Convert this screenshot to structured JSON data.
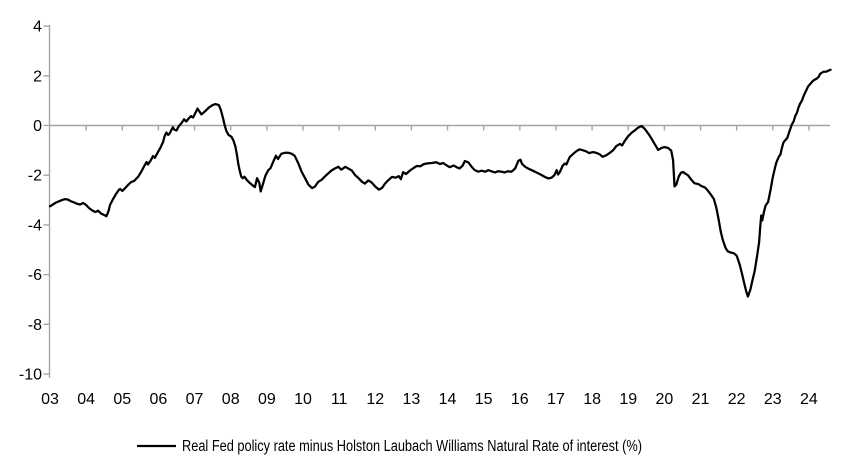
{
  "chart_data": {
    "type": "line",
    "title": "",
    "xlabel": "",
    "ylabel": "",
    "x_axis": {
      "tick_labels": [
        "03",
        "04",
        "05",
        "06",
        "07",
        "08",
        "09",
        "10",
        "11",
        "12",
        "13",
        "14",
        "15",
        "16",
        "17",
        "18",
        "19",
        "20",
        "21",
        "22",
        "23",
        "24"
      ],
      "tick_years": [
        2003,
        2004,
        2005,
        2006,
        2007,
        2008,
        2009,
        2010,
        2011,
        2012,
        2013,
        2014,
        2015,
        2016,
        2017,
        2018,
        2019,
        2020,
        2021,
        2022,
        2023,
        2024
      ],
      "range": [
        2003,
        2024.75
      ]
    },
    "y_axis": {
      "ticks": [
        4,
        2,
        0,
        -2,
        -4,
        -6,
        -8,
        -10
      ],
      "range": [
        -10,
        4
      ]
    },
    "grid": {
      "zero_line": true,
      "legend_position": "bottom-center"
    },
    "series": [
      {
        "name": "Real Fed policy rate minus Holston Laubach Williams Natural Rate of interest (%)",
        "color": "#000000",
        "points": [
          [
            2003.0,
            -3.25
          ],
          [
            2003.08,
            -3.18
          ],
          [
            2003.17,
            -3.1
          ],
          [
            2003.25,
            -3.05
          ],
          [
            2003.33,
            -3.0
          ],
          [
            2003.42,
            -2.96
          ],
          [
            2003.5,
            -2.98
          ],
          [
            2003.58,
            -3.05
          ],
          [
            2003.67,
            -3.1
          ],
          [
            2003.75,
            -3.15
          ],
          [
            2003.83,
            -3.18
          ],
          [
            2003.92,
            -3.12
          ],
          [
            2004.0,
            -3.2
          ],
          [
            2004.08,
            -3.32
          ],
          [
            2004.17,
            -3.42
          ],
          [
            2004.25,
            -3.48
          ],
          [
            2004.33,
            -3.43
          ],
          [
            2004.42,
            -3.55
          ],
          [
            2004.5,
            -3.6
          ],
          [
            2004.56,
            -3.65
          ],
          [
            2004.62,
            -3.45
          ],
          [
            2004.66,
            -3.2
          ],
          [
            2004.75,
            -2.95
          ],
          [
            2004.83,
            -2.75
          ],
          [
            2004.9,
            -2.6
          ],
          [
            2004.94,
            -2.55
          ],
          [
            2005.0,
            -2.63
          ],
          [
            2005.06,
            -2.55
          ],
          [
            2005.17,
            -2.38
          ],
          [
            2005.25,
            -2.27
          ],
          [
            2005.33,
            -2.23
          ],
          [
            2005.44,
            -2.06
          ],
          [
            2005.52,
            -1.87
          ],
          [
            2005.6,
            -1.65
          ],
          [
            2005.67,
            -1.47
          ],
          [
            2005.71,
            -1.57
          ],
          [
            2005.79,
            -1.4
          ],
          [
            2005.85,
            -1.23
          ],
          [
            2005.9,
            -1.3
          ],
          [
            2006.0,
            -1.04
          ],
          [
            2006.06,
            -0.88
          ],
          [
            2006.13,
            -0.66
          ],
          [
            2006.17,
            -0.43
          ],
          [
            2006.22,
            -0.28
          ],
          [
            2006.27,
            -0.38
          ],
          [
            2006.31,
            -0.32
          ],
          [
            2006.35,
            -0.2
          ],
          [
            2006.4,
            -0.07
          ],
          [
            2006.44,
            -0.17
          ],
          [
            2006.5,
            -0.2
          ],
          [
            2006.54,
            -0.09
          ],
          [
            2006.58,
            0.0
          ],
          [
            2006.63,
            0.08
          ],
          [
            2006.71,
            0.25
          ],
          [
            2006.77,
            0.16
          ],
          [
            2006.85,
            0.3
          ],
          [
            2006.9,
            0.38
          ],
          [
            2006.96,
            0.32
          ],
          [
            2007.04,
            0.55
          ],
          [
            2007.08,
            0.68
          ],
          [
            2007.13,
            0.57
          ],
          [
            2007.19,
            0.45
          ],
          [
            2007.25,
            0.52
          ],
          [
            2007.31,
            0.6
          ],
          [
            2007.4,
            0.73
          ],
          [
            2007.5,
            0.82
          ],
          [
            2007.58,
            0.86
          ],
          [
            2007.67,
            0.82
          ],
          [
            2007.73,
            0.62
          ],
          [
            2007.79,
            0.28
          ],
          [
            2007.83,
            0.02
          ],
          [
            2007.88,
            -0.22
          ],
          [
            2007.94,
            -0.38
          ],
          [
            2008.02,
            -0.45
          ],
          [
            2008.08,
            -0.62
          ],
          [
            2008.13,
            -0.85
          ],
          [
            2008.17,
            -1.15
          ],
          [
            2008.21,
            -1.55
          ],
          [
            2008.25,
            -1.82
          ],
          [
            2008.29,
            -2.05
          ],
          [
            2008.33,
            -2.12
          ],
          [
            2008.38,
            -2.06
          ],
          [
            2008.44,
            -2.18
          ],
          [
            2008.52,
            -2.3
          ],
          [
            2008.6,
            -2.4
          ],
          [
            2008.67,
            -2.48
          ],
          [
            2008.73,
            -2.12
          ],
          [
            2008.79,
            -2.3
          ],
          [
            2008.83,
            -2.65
          ],
          [
            2008.9,
            -2.32
          ],
          [
            2008.96,
            -2.02
          ],
          [
            2009.04,
            -1.8
          ],
          [
            2009.1,
            -1.72
          ],
          [
            2009.17,
            -1.48
          ],
          [
            2009.25,
            -1.22
          ],
          [
            2009.31,
            -1.35
          ],
          [
            2009.4,
            -1.14
          ],
          [
            2009.5,
            -1.1
          ],
          [
            2009.6,
            -1.1
          ],
          [
            2009.69,
            -1.14
          ],
          [
            2009.77,
            -1.22
          ],
          [
            2009.87,
            -1.52
          ],
          [
            2009.96,
            -1.85
          ],
          [
            2010.06,
            -2.12
          ],
          [
            2010.15,
            -2.38
          ],
          [
            2010.25,
            -2.52
          ],
          [
            2010.33,
            -2.46
          ],
          [
            2010.42,
            -2.27
          ],
          [
            2010.52,
            -2.18
          ],
          [
            2010.6,
            -2.06
          ],
          [
            2010.69,
            -1.94
          ],
          [
            2010.79,
            -1.81
          ],
          [
            2010.88,
            -1.73
          ],
          [
            2010.98,
            -1.66
          ],
          [
            2011.06,
            -1.78
          ],
          [
            2011.17,
            -1.66
          ],
          [
            2011.25,
            -1.73
          ],
          [
            2011.35,
            -1.81
          ],
          [
            2011.44,
            -1.99
          ],
          [
            2011.54,
            -2.12
          ],
          [
            2011.63,
            -2.26
          ],
          [
            2011.71,
            -2.34
          ],
          [
            2011.81,
            -2.21
          ],
          [
            2011.9,
            -2.29
          ],
          [
            2012.0,
            -2.46
          ],
          [
            2012.1,
            -2.58
          ],
          [
            2012.19,
            -2.51
          ],
          [
            2012.27,
            -2.34
          ],
          [
            2012.37,
            -2.19
          ],
          [
            2012.46,
            -2.07
          ],
          [
            2012.56,
            -2.1
          ],
          [
            2012.65,
            -2.04
          ],
          [
            2012.71,
            -2.16
          ],
          [
            2012.77,
            -1.88
          ],
          [
            2012.85,
            -1.95
          ],
          [
            2012.96,
            -1.81
          ],
          [
            2013.06,
            -1.71
          ],
          [
            2013.15,
            -1.63
          ],
          [
            2013.25,
            -1.64
          ],
          [
            2013.33,
            -1.56
          ],
          [
            2013.42,
            -1.53
          ],
          [
            2013.56,
            -1.51
          ],
          [
            2013.69,
            -1.48
          ],
          [
            2013.79,
            -1.55
          ],
          [
            2013.88,
            -1.51
          ],
          [
            2013.98,
            -1.61
          ],
          [
            2014.06,
            -1.68
          ],
          [
            2014.17,
            -1.61
          ],
          [
            2014.25,
            -1.68
          ],
          [
            2014.33,
            -1.73
          ],
          [
            2014.42,
            -1.61
          ],
          [
            2014.48,
            -1.43
          ],
          [
            2014.58,
            -1.49
          ],
          [
            2014.67,
            -1.67
          ],
          [
            2014.75,
            -1.79
          ],
          [
            2014.85,
            -1.86
          ],
          [
            2014.94,
            -1.82
          ],
          [
            2015.04,
            -1.86
          ],
          [
            2015.13,
            -1.8
          ],
          [
            2015.21,
            -1.84
          ],
          [
            2015.31,
            -1.89
          ],
          [
            2015.4,
            -1.84
          ],
          [
            2015.5,
            -1.86
          ],
          [
            2015.58,
            -1.89
          ],
          [
            2015.67,
            -1.84
          ],
          [
            2015.77,
            -1.86
          ],
          [
            2015.87,
            -1.73
          ],
          [
            2015.96,
            -1.42
          ],
          [
            2016.02,
            -1.38
          ],
          [
            2016.06,
            -1.54
          ],
          [
            2016.15,
            -1.66
          ],
          [
            2016.23,
            -1.73
          ],
          [
            2016.33,
            -1.8
          ],
          [
            2016.42,
            -1.86
          ],
          [
            2016.52,
            -1.93
          ],
          [
            2016.6,
            -1.99
          ],
          [
            2016.69,
            -2.07
          ],
          [
            2016.79,
            -2.13
          ],
          [
            2016.88,
            -2.1
          ],
          [
            2016.96,
            -1.99
          ],
          [
            2017.02,
            -1.8
          ],
          [
            2017.06,
            -1.97
          ],
          [
            2017.1,
            -1.89
          ],
          [
            2017.19,
            -1.61
          ],
          [
            2017.25,
            -1.53
          ],
          [
            2017.29,
            -1.57
          ],
          [
            2017.38,
            -1.27
          ],
          [
            2017.48,
            -1.14
          ],
          [
            2017.56,
            -1.04
          ],
          [
            2017.65,
            -0.96
          ],
          [
            2017.75,
            -1.0
          ],
          [
            2017.83,
            -1.04
          ],
          [
            2017.92,
            -1.11
          ],
          [
            2018.02,
            -1.07
          ],
          [
            2018.1,
            -1.09
          ],
          [
            2018.21,
            -1.16
          ],
          [
            2018.29,
            -1.26
          ],
          [
            2018.4,
            -1.19
          ],
          [
            2018.5,
            -1.09
          ],
          [
            2018.58,
            -1.0
          ],
          [
            2018.67,
            -0.83
          ],
          [
            2018.77,
            -0.74
          ],
          [
            2018.83,
            -0.8
          ],
          [
            2018.9,
            -0.63
          ],
          [
            2019.0,
            -0.43
          ],
          [
            2019.1,
            -0.28
          ],
          [
            2019.17,
            -0.21
          ],
          [
            2019.27,
            -0.09
          ],
          [
            2019.37,
            -0.02
          ],
          [
            2019.46,
            -0.14
          ],
          [
            2019.56,
            -0.34
          ],
          [
            2019.65,
            -0.54
          ],
          [
            2019.73,
            -0.74
          ],
          [
            2019.83,
            -0.98
          ],
          [
            2019.92,
            -0.9
          ],
          [
            2020.0,
            -0.87
          ],
          [
            2020.1,
            -0.9
          ],
          [
            2020.19,
            -1.01
          ],
          [
            2020.24,
            -1.4
          ],
          [
            2020.28,
            -2.45
          ],
          [
            2020.33,
            -2.38
          ],
          [
            2020.4,
            -2.05
          ],
          [
            2020.46,
            -1.9
          ],
          [
            2020.52,
            -1.87
          ],
          [
            2020.58,
            -1.94
          ],
          [
            2020.65,
            -2.0
          ],
          [
            2020.75,
            -2.19
          ],
          [
            2020.83,
            -2.32
          ],
          [
            2020.94,
            -2.36
          ],
          [
            2021.02,
            -2.43
          ],
          [
            2021.12,
            -2.49
          ],
          [
            2021.21,
            -2.63
          ],
          [
            2021.29,
            -2.79
          ],
          [
            2021.37,
            -2.96
          ],
          [
            2021.44,
            -3.32
          ],
          [
            2021.5,
            -3.78
          ],
          [
            2021.56,
            -4.28
          ],
          [
            2021.62,
            -4.62
          ],
          [
            2021.69,
            -4.92
          ],
          [
            2021.75,
            -5.06
          ],
          [
            2021.83,
            -5.11
          ],
          [
            2021.92,
            -5.14
          ],
          [
            2022.0,
            -5.24
          ],
          [
            2022.08,
            -5.58
          ],
          [
            2022.15,
            -5.98
          ],
          [
            2022.21,
            -6.35
          ],
          [
            2022.27,
            -6.7
          ],
          [
            2022.31,
            -6.88
          ],
          [
            2022.38,
            -6.6
          ],
          [
            2022.44,
            -6.2
          ],
          [
            2022.5,
            -5.85
          ],
          [
            2022.56,
            -5.3
          ],
          [
            2022.62,
            -4.7
          ],
          [
            2022.65,
            -4.1
          ],
          [
            2022.68,
            -3.62
          ],
          [
            2022.71,
            -3.82
          ],
          [
            2022.75,
            -3.5
          ],
          [
            2022.8,
            -3.22
          ],
          [
            2022.87,
            -3.08
          ],
          [
            2022.94,
            -2.58
          ],
          [
            2023.0,
            -2.08
          ],
          [
            2023.06,
            -1.7
          ],
          [
            2023.1,
            -1.48
          ],
          [
            2023.17,
            -1.25
          ],
          [
            2023.21,
            -1.17
          ],
          [
            2023.25,
            -0.92
          ],
          [
            2023.29,
            -0.7
          ],
          [
            2023.33,
            -0.62
          ],
          [
            2023.4,
            -0.5
          ],
          [
            2023.44,
            -0.32
          ],
          [
            2023.48,
            -0.16
          ],
          [
            2023.52,
            0.02
          ],
          [
            2023.58,
            0.18
          ],
          [
            2023.62,
            0.38
          ],
          [
            2023.67,
            0.52
          ],
          [
            2023.71,
            0.72
          ],
          [
            2023.75,
            0.86
          ],
          [
            2023.81,
            1.02
          ],
          [
            2023.85,
            1.18
          ],
          [
            2023.9,
            1.33
          ],
          [
            2023.94,
            1.46
          ],
          [
            2023.98,
            1.58
          ],
          [
            2024.04,
            1.68
          ],
          [
            2024.1,
            1.78
          ],
          [
            2024.15,
            1.84
          ],
          [
            2024.21,
            1.88
          ],
          [
            2024.27,
            1.96
          ],
          [
            2024.31,
            2.08
          ],
          [
            2024.4,
            2.16
          ],
          [
            2024.48,
            2.17
          ],
          [
            2024.54,
            2.21
          ],
          [
            2024.6,
            2.24
          ]
        ]
      }
    ]
  },
  "colors": {
    "background": "#ffffff",
    "axis": "#a6a6a6",
    "line": "#000000",
    "text": "#000000"
  }
}
